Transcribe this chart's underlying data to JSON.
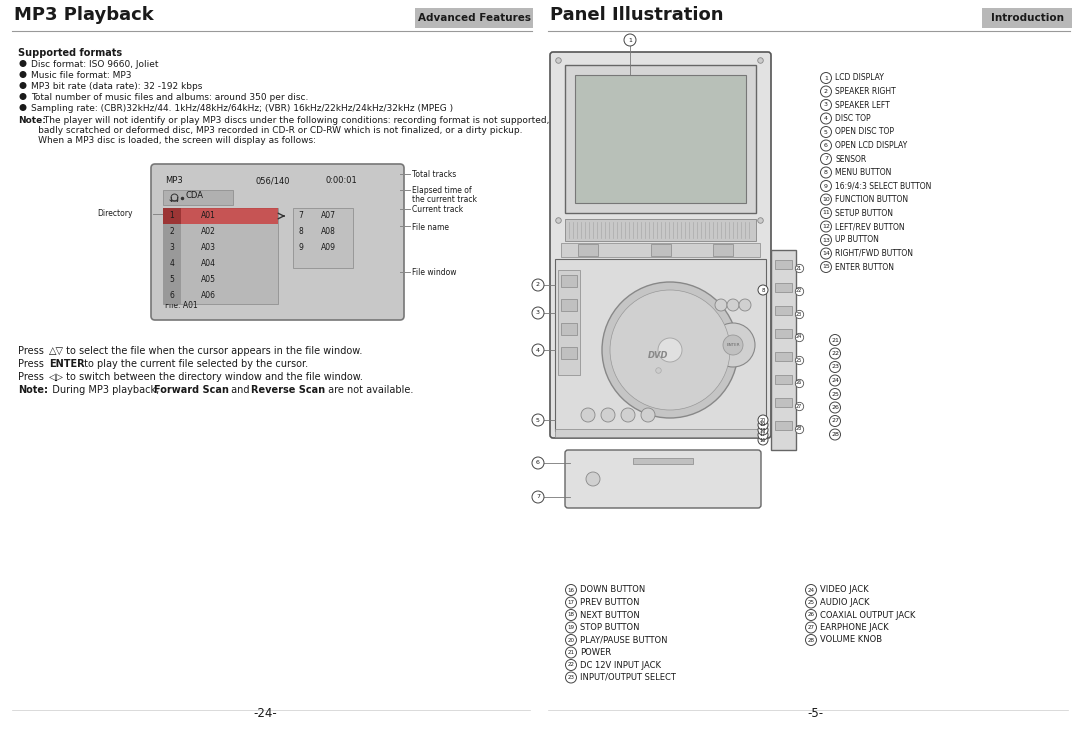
{
  "bg_color": "#ffffff",
  "title_left": "MP3 Playback",
  "title_right": "Panel Illustration",
  "badge_left": "Advanced Features",
  "badge_right": "Introduction",
  "page_left": "-24-",
  "page_right": "-5-",
  "bullet_points": [
    "Disc format: ISO 9660, Joliet",
    "Music file format: MP3",
    "MP3 bit rate (data rate): 32 -192 kbps",
    "Total number of music files and albums: around 350 per disc.",
    "Sampling rate: (CBR)32kHz/44. 1kHz/48kHz/64kHz; (VBR) 16kHz/22kHz/24kHz/32kHz (MPEG )"
  ],
  "note_lines": [
    " The player will not identify or play MP3 discs under the following conditions: recording format is not supported,",
    "       badly scratched or deformed disc, MP3 recorded in CD-R or CD-RW which is not finalized, or a dirty pickup.",
    "       When a MP3 disc is loaded, the screen will display as follows:"
  ],
  "right_labels_col1": [
    [
      1,
      "LCD DISPLAY"
    ],
    [
      2,
      "SPEAKER RIGHT"
    ],
    [
      3,
      "SPEAKER LEFT"
    ],
    [
      4,
      "DISC TOP"
    ],
    [
      5,
      "OPEN DISC TOP"
    ],
    [
      6,
      "OPEN LCD DISPLAY"
    ],
    [
      7,
      "SENSOR"
    ],
    [
      8,
      "MENU BUTTON"
    ],
    [
      9,
      "16:9/4:3 SELECT BUTTON"
    ],
    [
      10,
      "FUNCTION BUTTON"
    ],
    [
      11,
      "SETUP BUTTON"
    ],
    [
      12,
      "LEFT/REV BUTTON"
    ],
    [
      13,
      "UP BUTTON"
    ],
    [
      14,
      "RIGHT/FWD BUTTON"
    ],
    [
      15,
      "ENTER BUTTON"
    ]
  ],
  "side_labels": [
    21,
    22,
    23,
    24,
    25,
    26,
    27,
    28
  ],
  "right_labels_bottom_col1": [
    [
      16,
      "DOWN BUTTON"
    ],
    [
      17,
      "PREV BUTTON"
    ],
    [
      18,
      "NEXT BUTTON"
    ],
    [
      19,
      "STOP BUTTON"
    ],
    [
      20,
      "PLAY/PAUSE BUTTON"
    ],
    [
      21,
      "POWER"
    ],
    [
      22,
      "DC 12V INPUT JACK"
    ],
    [
      23,
      "INPUT/OUTPUT SELECT"
    ]
  ],
  "right_labels_bottom_col2": [
    [
      24,
      "VIDEO JACK"
    ],
    [
      25,
      "AUDIO JACK"
    ],
    [
      26,
      "COAXIAL OUTPUT JACK"
    ],
    [
      27,
      "EARPHONE JACK"
    ],
    [
      28,
      "VOLUME KNOB"
    ]
  ]
}
